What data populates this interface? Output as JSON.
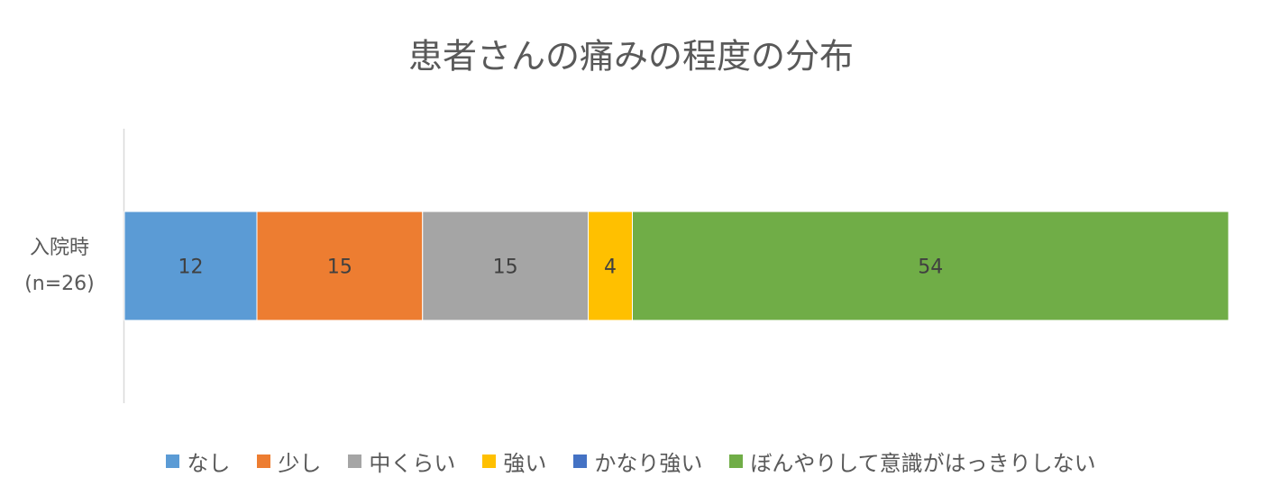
{
  "chart_data": {
    "type": "stacked_bar_horizontal",
    "title": "患者さんの痛みの程度の分布",
    "categories": [
      "入院時\n(n=26)"
    ],
    "series": [
      {
        "name": "なし",
        "color": "#5b9bd5",
        "values": [
          12
        ]
      },
      {
        "name": "少し",
        "color": "#ed7d31",
        "values": [
          15
        ]
      },
      {
        "name": "中くらい",
        "color": "#a5a5a5",
        "values": [
          15
        ]
      },
      {
        "name": "強い",
        "color": "#ffc000",
        "values": [
          4
        ]
      },
      {
        "name": "かなり強い",
        "color": "#4472c4",
        "values": [
          0
        ]
      },
      {
        "name": "ぼんやりして意識がはっきりしない",
        "color": "#70ad47",
        "values": [
          54
        ]
      }
    ],
    "xlim": [
      0,
      100
    ],
    "legend": "bottom"
  }
}
